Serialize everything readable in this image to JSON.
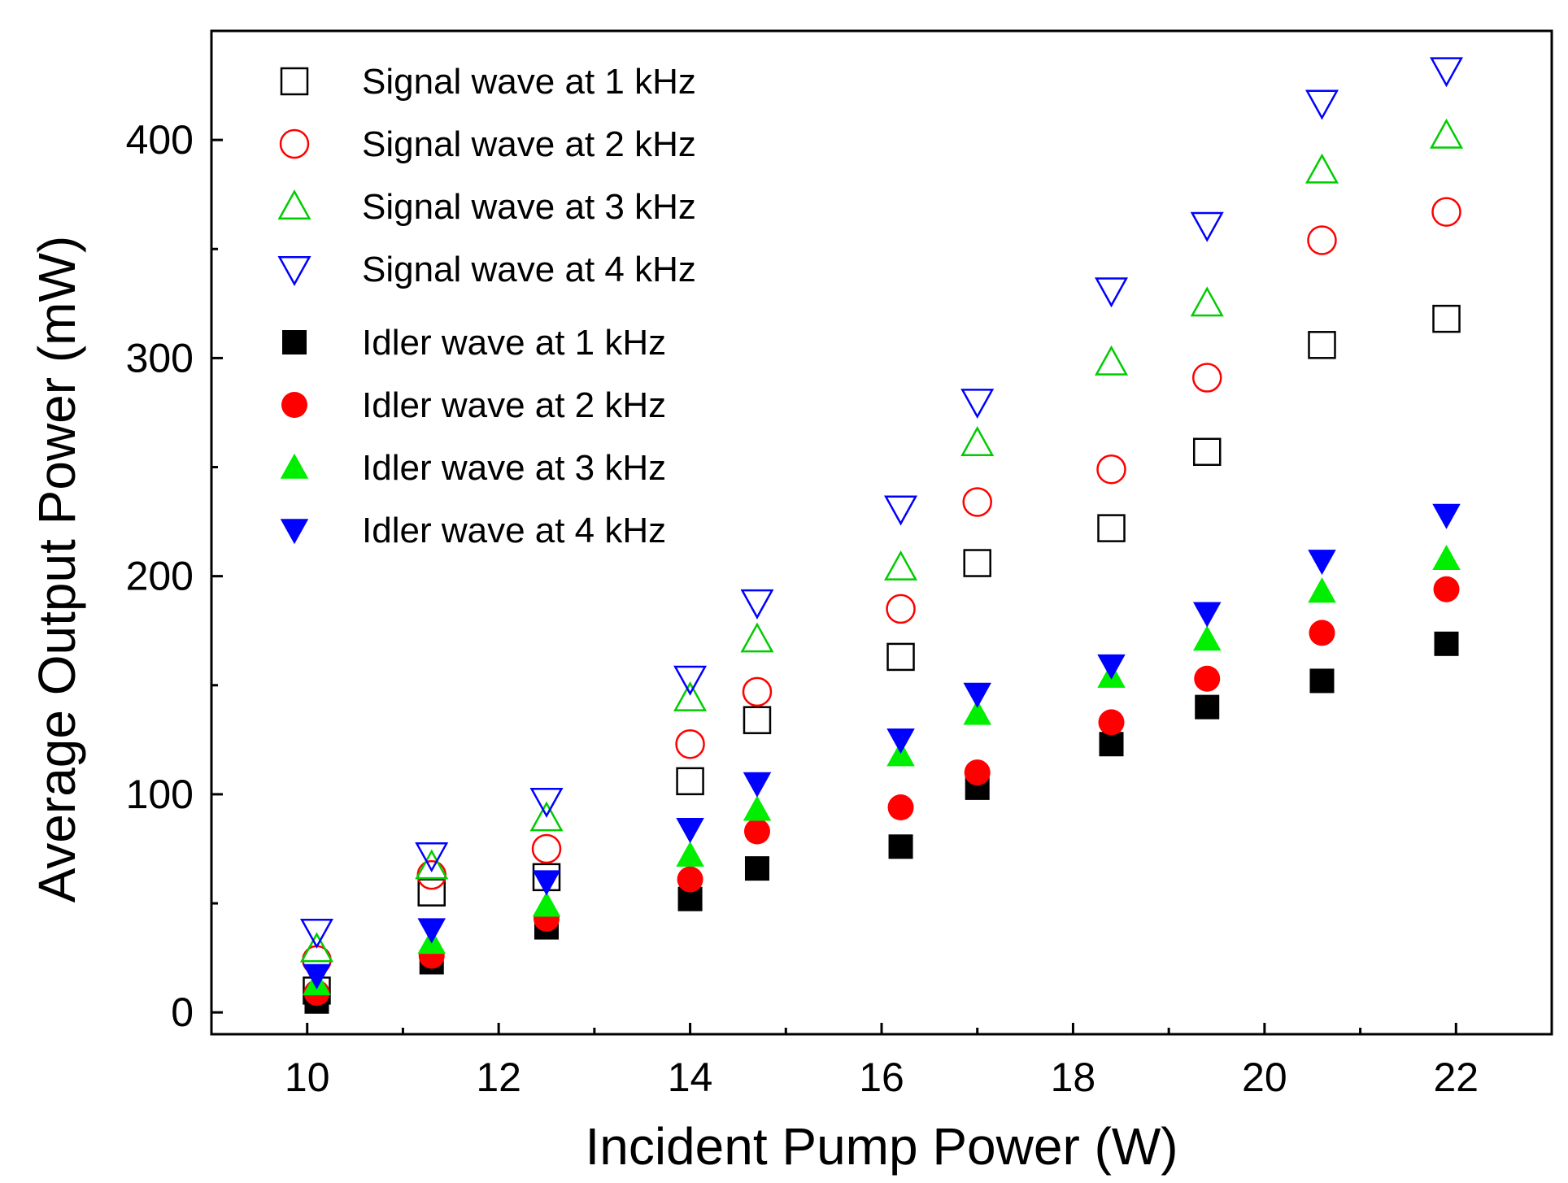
{
  "chart_data": {
    "type": "scatter",
    "title": "",
    "xlabel": "Incident Pump Power (W)",
    "ylabel": "Average Output Power (mW)",
    "xlim": [
      9,
      23
    ],
    "ylim": [
      -10,
      450
    ],
    "xticks": [
      10,
      12,
      14,
      16,
      18,
      20,
      22
    ],
    "yticks": [
      0,
      100,
      200,
      300,
      400
    ],
    "grid": false,
    "legend_position": "top-left",
    "x": [
      10.1,
      11.3,
      12.5,
      14.0,
      14.7,
      16.2,
      17.0,
      18.4,
      19.4,
      20.6,
      21.9
    ],
    "series": [
      {
        "name": "Signal wave at 1 kHz",
        "marker": "square",
        "filled": false,
        "color": "#000000",
        "values": [
          10,
          55,
          62,
          106,
          134,
          163,
          206,
          222,
          257,
          306,
          318
        ]
      },
      {
        "name": "Signal wave at 2 kHz",
        "marker": "circle",
        "filled": false,
        "color": "#ff0000",
        "values": [
          24,
          63,
          75,
          123,
          147,
          185,
          234,
          249,
          291,
          354,
          367
        ]
      },
      {
        "name": "Signal wave at 3 kHz",
        "marker": "triangle-up",
        "filled": false,
        "color": "#00cc00",
        "values": [
          29,
          67,
          89,
          144,
          171,
          204,
          261,
          298,
          325,
          386,
          402
        ]
      },
      {
        "name": "Signal wave at 4 kHz",
        "marker": "triangle-down",
        "filled": false,
        "color": "#0000ff",
        "values": [
          37,
          72,
          97,
          153,
          188,
          231,
          280,
          331,
          361,
          417,
          432
        ]
      },
      {
        "name": "Idler wave at 1 kHz",
        "marker": "square",
        "filled": true,
        "color": "#000000",
        "values": [
          5,
          23,
          39,
          52,
          66,
          76,
          103,
          123,
          140,
          152,
          169
        ]
      },
      {
        "name": "Idler wave at 2 kHz",
        "marker": "circle",
        "filled": true,
        "color": "#ff0000",
        "values": [
          9,
          26,
          43,
          61,
          83,
          94,
          110,
          133,
          153,
          174,
          194
        ]
      },
      {
        "name": "Idler wave at 3 kHz",
        "marker": "triangle-up",
        "filled": true,
        "color": "#00ee00",
        "values": [
          13,
          32,
          49,
          72,
          93,
          118,
          137,
          154,
          171,
          193,
          208
        ]
      },
      {
        "name": "Idler wave at 4 kHz",
        "marker": "triangle-down",
        "filled": true,
        "color": "#0000ff",
        "values": [
          17,
          38,
          60,
          84,
          105,
          125,
          146,
          159,
          183,
          207,
          228
        ]
      }
    ]
  }
}
